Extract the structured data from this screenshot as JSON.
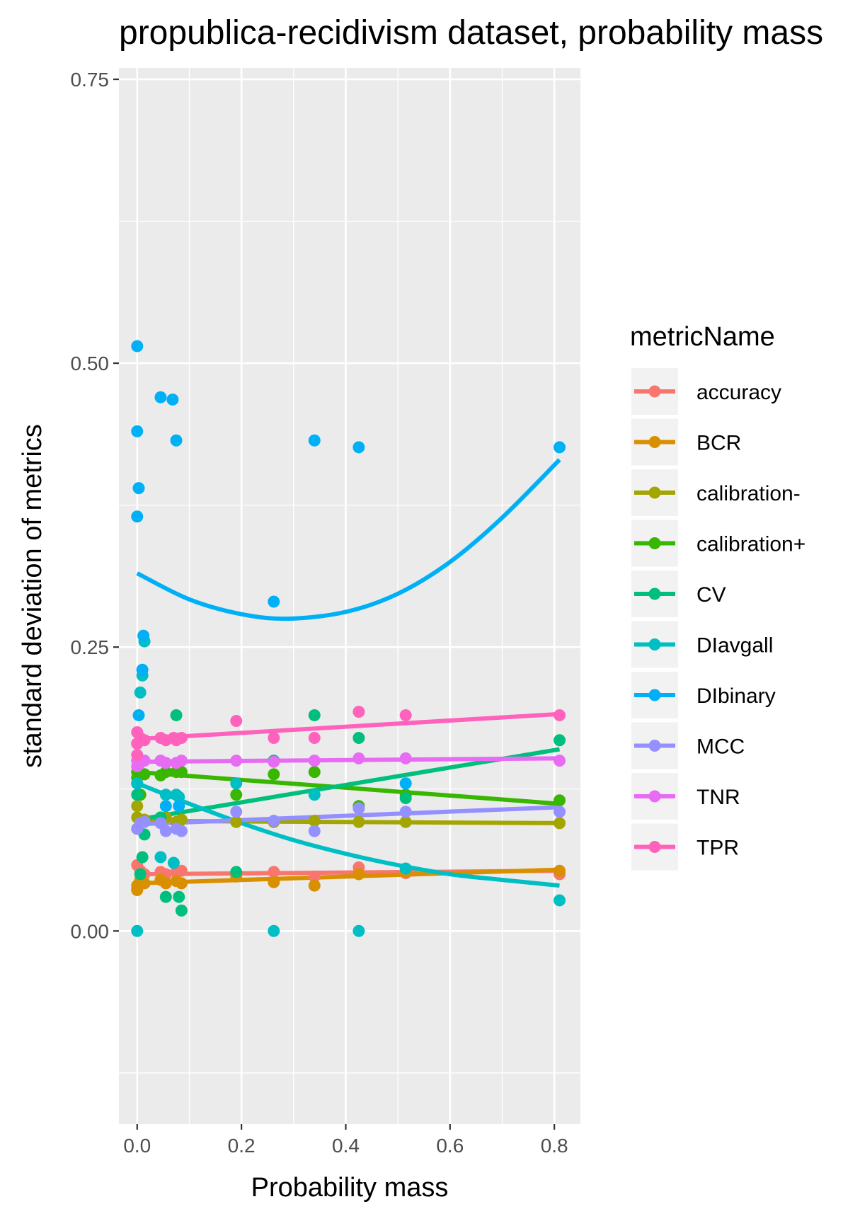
{
  "chart_data": {
    "type": "scatter",
    "title": "propublica-recidivism dataset, probability mass",
    "xlabel": "Probability mass",
    "ylabel": "standard deviation of metrics",
    "xlim": [
      -0.035,
      0.85
    ],
    "ylim": [
      -0.17,
      0.76
    ],
    "x_ticks": [
      "0.0",
      "0.2",
      "0.4",
      "0.6",
      "0.8"
    ],
    "x_tick_values": [
      0,
      0.2,
      0.4,
      0.6,
      0.8
    ],
    "y_ticks": [
      "0.00",
      "0.25",
      "0.50",
      "0.75"
    ],
    "y_tick_values": [
      0,
      0.25,
      0.5,
      0.75
    ],
    "grid": true,
    "legend_position": "right",
    "legend_title": "metricName",
    "series": [
      {
        "name": "accuracy",
        "color": "#F8766D",
        "points": [
          [
            0.0,
            0.058
          ],
          [
            0.0,
            0.037
          ],
          [
            0.006,
            0.053
          ],
          [
            0.014,
            0.05
          ],
          [
            0.045,
            0.052
          ],
          [
            0.055,
            0.05
          ],
          [
            0.075,
            0.052
          ],
          [
            0.085,
            0.053
          ],
          [
            0.19,
            0.05
          ],
          [
            0.262,
            0.052
          ],
          [
            0.34,
            0.048
          ],
          [
            0.425,
            0.056
          ],
          [
            0.515,
            0.051
          ],
          [
            0.81,
            0.05
          ]
        ],
        "trend": [
          [
            0.0,
            0.05
          ],
          [
            0.81,
            0.053
          ]
        ]
      },
      {
        "name": "BCR",
        "color": "#D89000",
        "points": [
          [
            0.0,
            0.04
          ],
          [
            0.0,
            0.036
          ],
          [
            0.006,
            0.045
          ],
          [
            0.014,
            0.042
          ],
          [
            0.045,
            0.045
          ],
          [
            0.055,
            0.042
          ],
          [
            0.075,
            0.044
          ],
          [
            0.085,
            0.042
          ],
          [
            0.19,
            0.048
          ],
          [
            0.262,
            0.043
          ],
          [
            0.34,
            0.04
          ],
          [
            0.425,
            0.05
          ],
          [
            0.515,
            0.052
          ],
          [
            0.81,
            0.053
          ]
        ],
        "trend": [
          [
            0.0,
            0.042
          ],
          [
            0.81,
            0.054
          ]
        ]
      },
      {
        "name": "calibration-",
        "color": "#A3A500",
        "points": [
          [
            0.0,
            0.1
          ],
          [
            0.0,
            0.11
          ],
          [
            0.0,
            0.09
          ],
          [
            0.014,
            0.098
          ],
          [
            0.045,
            0.097
          ],
          [
            0.055,
            0.1
          ],
          [
            0.075,
            0.096
          ],
          [
            0.085,
            0.098
          ],
          [
            0.19,
            0.096
          ],
          [
            0.262,
            0.096
          ],
          [
            0.34,
            0.097
          ],
          [
            0.425,
            0.096
          ],
          [
            0.515,
            0.096
          ],
          [
            0.81,
            0.095
          ]
        ],
        "trend": [
          [
            0.0,
            0.097
          ],
          [
            0.81,
            0.095
          ]
        ]
      },
      {
        "name": "calibration+",
        "color": "#39B600",
        "points": [
          [
            0.0,
            0.14
          ],
          [
            0.0,
            0.135
          ],
          [
            0.006,
            0.12
          ],
          [
            0.014,
            0.138
          ],
          [
            0.045,
            0.137
          ],
          [
            0.055,
            0.14
          ],
          [
            0.075,
            0.14
          ],
          [
            0.085,
            0.14
          ],
          [
            0.19,
            0.12
          ],
          [
            0.262,
            0.138
          ],
          [
            0.34,
            0.14
          ],
          [
            0.425,
            0.11
          ],
          [
            0.515,
            0.12
          ],
          [
            0.81,
            0.115
          ]
        ],
        "trend": [
          [
            0.0,
            0.14
          ],
          [
            0.81,
            0.112
          ]
        ]
      },
      {
        "name": "CV",
        "color": "#00BF7D",
        "points": [
          [
            0.0,
            0.12
          ],
          [
            0.0,
            0.13
          ],
          [
            0.006,
            0.05
          ],
          [
            0.01,
            0.065
          ],
          [
            0.014,
            0.085
          ],
          [
            0.045,
            0.1
          ],
          [
            0.055,
            0.03
          ],
          [
            0.075,
            0.19
          ],
          [
            0.08,
            0.03
          ],
          [
            0.085,
            0.018
          ],
          [
            0.19,
            0.052
          ],
          [
            0.262,
            0.15
          ],
          [
            0.34,
            0.19
          ],
          [
            0.425,
            0.17
          ],
          [
            0.515,
            0.117
          ],
          [
            0.81,
            0.168
          ]
        ],
        "trend": [
          [
            0.0,
            0.098
          ],
          [
            0.81,
            0.16
          ]
        ]
      },
      {
        "name": "DIavgall",
        "color": "#00BFC4",
        "points": [
          [
            0.0,
            0.0
          ],
          [
            0.0,
            0.13
          ],
          [
            0.006,
            0.21
          ],
          [
            0.01,
            0.225
          ],
          [
            0.014,
            0.255
          ],
          [
            0.045,
            0.065
          ],
          [
            0.055,
            0.12
          ],
          [
            0.07,
            0.06
          ],
          [
            0.075,
            0.12
          ],
          [
            0.08,
            0.118
          ],
          [
            0.19,
            0.13
          ],
          [
            0.262,
            0.0
          ],
          [
            0.34,
            0.12
          ],
          [
            0.425,
            0.0
          ],
          [
            0.515,
            0.055
          ],
          [
            0.81,
            0.027
          ]
        ],
        "trend": [
          [
            0.0,
            0.13
          ],
          [
            0.1,
            0.112
          ],
          [
            0.2,
            0.095
          ],
          [
            0.3,
            0.08
          ],
          [
            0.4,
            0.068
          ],
          [
            0.5,
            0.058
          ],
          [
            0.6,
            0.05
          ],
          [
            0.7,
            0.045
          ],
          [
            0.81,
            0.04
          ]
        ],
        "smooth": true
      },
      {
        "name": "DIbinary",
        "color": "#00B0F6",
        "points": [
          [
            0.0,
            0.515
          ],
          [
            0.0,
            0.44
          ],
          [
            0.003,
            0.39
          ],
          [
            0.0,
            0.365
          ],
          [
            0.0,
            0.165
          ],
          [
            0.003,
            0.19
          ],
          [
            0.012,
            0.26
          ],
          [
            0.01,
            0.23
          ],
          [
            0.045,
            0.47
          ],
          [
            0.068,
            0.468
          ],
          [
            0.075,
            0.432
          ],
          [
            0.055,
            0.11
          ],
          [
            0.08,
            0.11
          ],
          [
            0.262,
            0.29
          ],
          [
            0.34,
            0.432
          ],
          [
            0.425,
            0.426
          ],
          [
            0.515,
            0.13
          ],
          [
            0.81,
            0.426
          ]
        ],
        "trend": [
          [
            0.0,
            0.315
          ],
          [
            0.1,
            0.292
          ],
          [
            0.2,
            0.279
          ],
          [
            0.29,
            0.275
          ],
          [
            0.4,
            0.281
          ],
          [
            0.5,
            0.297
          ],
          [
            0.6,
            0.325
          ],
          [
            0.7,
            0.364
          ],
          [
            0.81,
            0.415
          ]
        ],
        "smooth": true
      },
      {
        "name": "MCC",
        "color": "#9590FF",
        "points": [
          [
            0.0,
            0.09
          ],
          [
            0.006,
            0.095
          ],
          [
            0.014,
            0.096
          ],
          [
            0.045,
            0.095
          ],
          [
            0.055,
            0.088
          ],
          [
            0.075,
            0.09
          ],
          [
            0.085,
            0.088
          ],
          [
            0.19,
            0.105
          ],
          [
            0.262,
            0.097
          ],
          [
            0.34,
            0.088
          ],
          [
            0.425,
            0.108
          ],
          [
            0.515,
            0.105
          ],
          [
            0.81,
            0.105
          ]
        ],
        "trend": [
          [
            0.0,
            0.094
          ],
          [
            0.81,
            0.109
          ]
        ]
      },
      {
        "name": "TNR",
        "color": "#E76BF3",
        "points": [
          [
            0.0,
            0.15
          ],
          [
            0.0,
            0.145
          ],
          [
            0.006,
            0.148
          ],
          [
            0.014,
            0.15
          ],
          [
            0.045,
            0.15
          ],
          [
            0.055,
            0.148
          ],
          [
            0.075,
            0.148
          ],
          [
            0.085,
            0.15
          ],
          [
            0.19,
            0.15
          ],
          [
            0.262,
            0.149
          ],
          [
            0.34,
            0.15
          ],
          [
            0.425,
            0.152
          ],
          [
            0.515,
            0.152
          ],
          [
            0.81,
            0.15
          ]
        ],
        "trend": [
          [
            0.0,
            0.149
          ],
          [
            0.81,
            0.152
          ]
        ]
      },
      {
        "name": "TPR",
        "color": "#FF62BC",
        "points": [
          [
            0.0,
            0.165
          ],
          [
            0.0,
            0.175
          ],
          [
            0.0,
            0.155
          ],
          [
            0.006,
            0.17
          ],
          [
            0.014,
            0.168
          ],
          [
            0.045,
            0.17
          ],
          [
            0.055,
            0.168
          ],
          [
            0.07,
            0.17
          ],
          [
            0.075,
            0.168
          ],
          [
            0.085,
            0.17
          ],
          [
            0.19,
            0.185
          ],
          [
            0.262,
            0.17
          ],
          [
            0.34,
            0.17
          ],
          [
            0.425,
            0.193
          ],
          [
            0.515,
            0.19
          ],
          [
            0.81,
            0.19
          ]
        ],
        "trend": [
          [
            0.0,
            0.169
          ],
          [
            0.81,
            0.191
          ]
        ]
      }
    ]
  }
}
